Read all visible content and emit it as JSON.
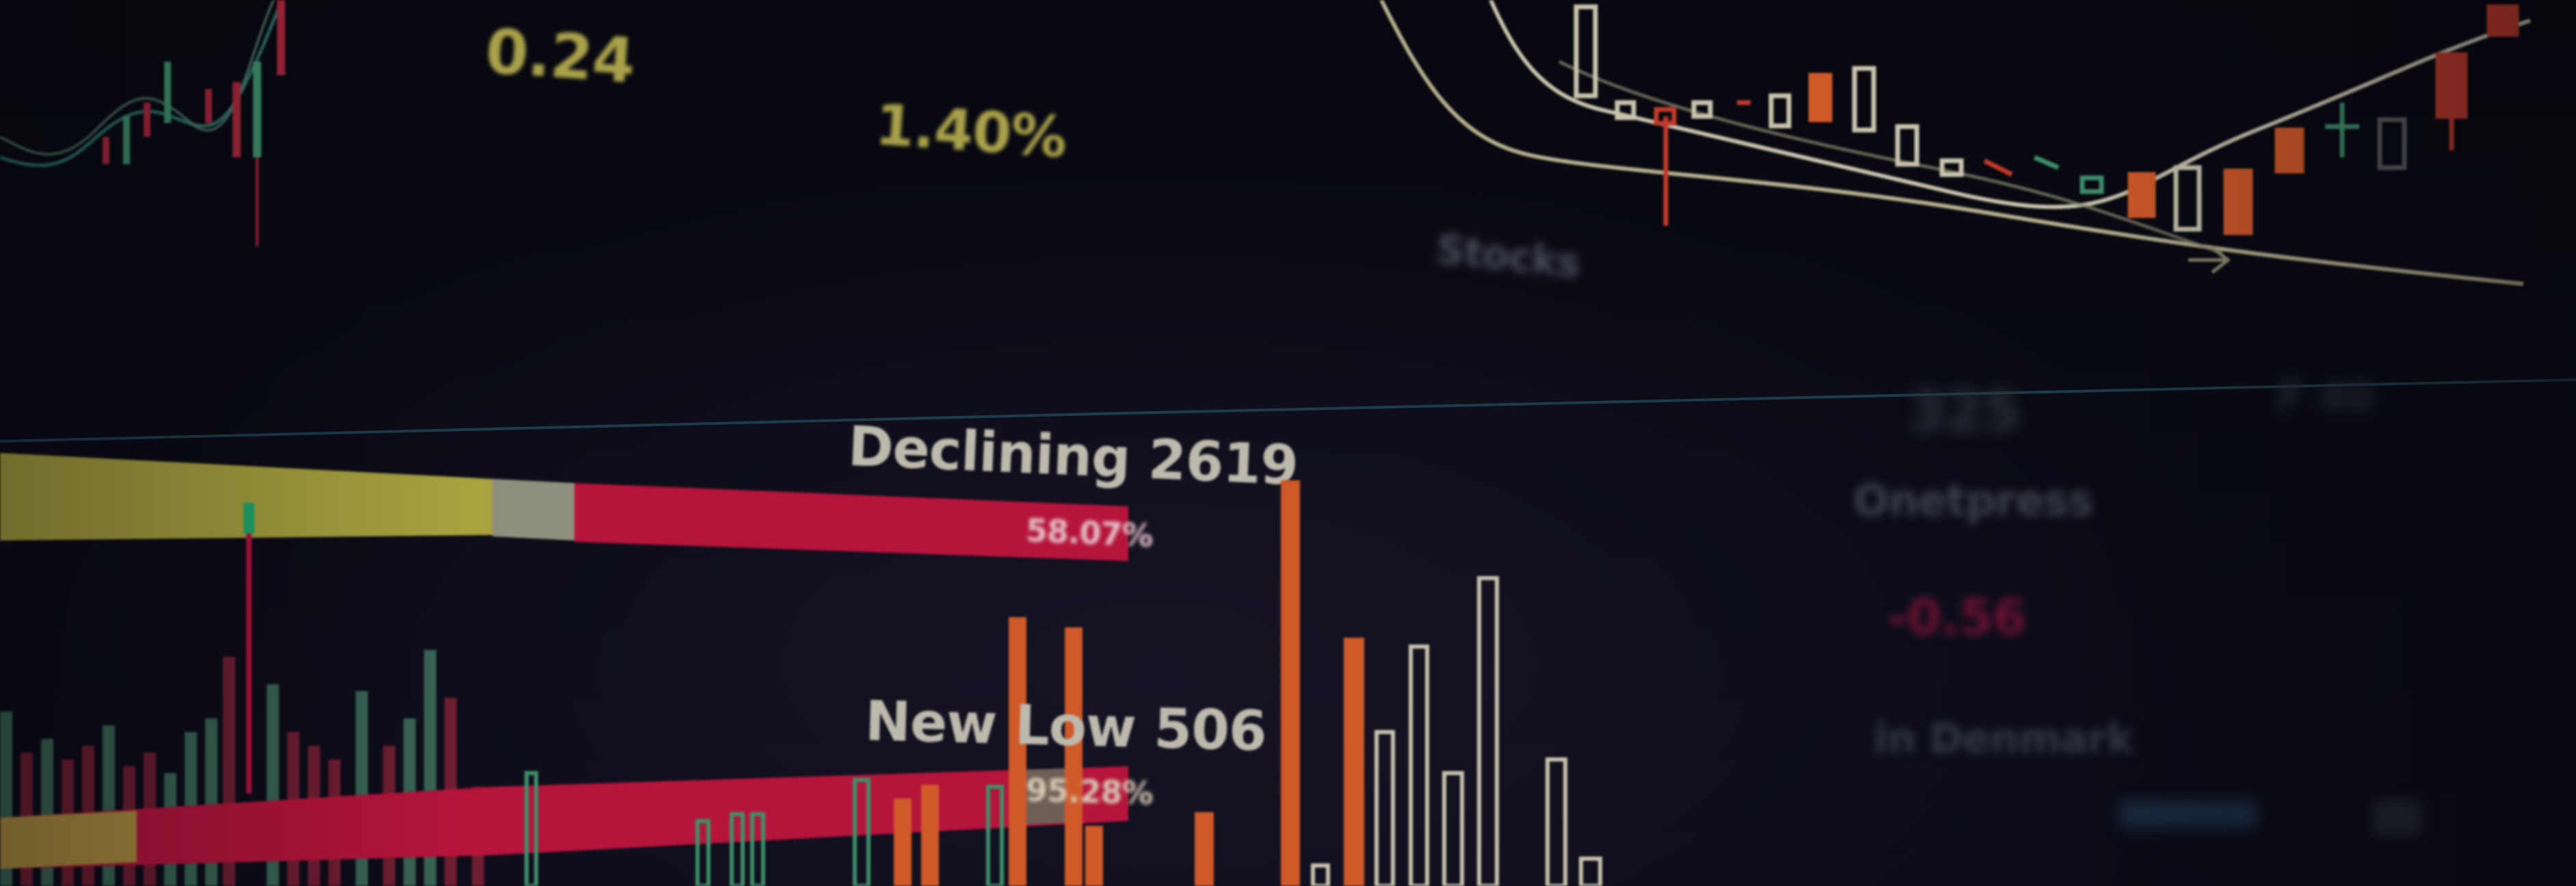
{
  "readouts": {
    "value_top": "0.24",
    "percent_top": "1.40%"
  },
  "labels": {
    "stocks": "Stocks",
    "declining": "Declining 2619",
    "declining_pct": "58.07%",
    "new_low": "New Low 506",
    "new_low_pct": "95.28%",
    "right_number": "325",
    "right_number2": "F 40",
    "right_label": "Onetpress",
    "right_value": "-0.56",
    "right_sub": "in Denmark"
  },
  "colors": {
    "background": "#07080f",
    "yellow": "#a9a23f",
    "red": "#b5143b",
    "orange": "#c4531e",
    "green": "#3f8f6a",
    "cream": "#bdb89a"
  }
}
